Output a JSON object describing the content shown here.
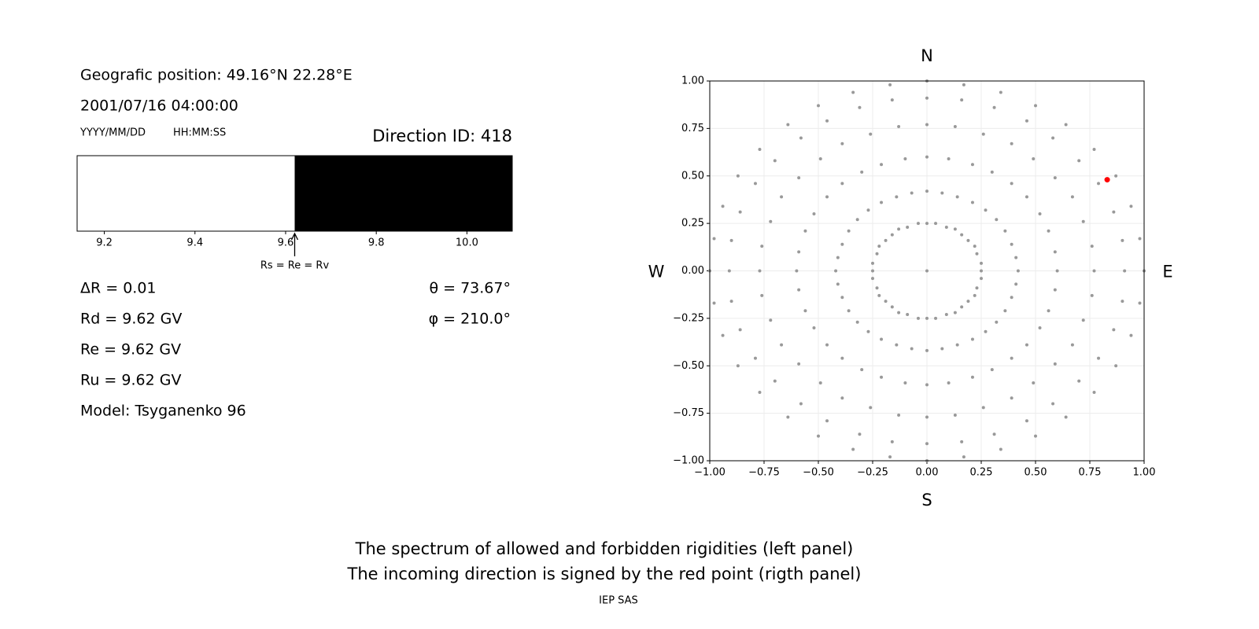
{
  "header": {
    "position": "Geografic position: 49.16°N 22.28°E",
    "datetime": "2001/07/16 04:00:00",
    "date_format": "YYYY/MM/DD",
    "time_format": "HH:MM:SS",
    "direction": "Direction ID: 418"
  },
  "params_left": [
    "ΔR = 0.01",
    "Rd = 9.62 GV",
    "Re = 9.62 GV",
    "Ru = 9.62 GV",
    "Model: Tsyganenko 96"
  ],
  "params_right": [
    "θ = 73.67°",
    "φ = 210.0°"
  ],
  "chart_data": [
    {
      "type": "spectrum",
      "xlim": [
        9.14,
        10.1
      ],
      "xticks": [
        9.2,
        9.4,
        9.6,
        9.8,
        {
          "value": 10,
          "label": "10.0"
        }
      ],
      "cutoff": 9.62,
      "cutoff_label": "Rs = Re = Rv",
      "allowed_color": "#ffffff",
      "forbidden_color": "#000000"
    },
    {
      "type": "scatter",
      "xlim": [
        -1,
        1
      ],
      "ylim": [
        -1,
        1
      ],
      "xticks": [
        {
          "value": -1,
          "label": "−1.00"
        },
        {
          "value": -0.75,
          "label": "−0.75"
        },
        {
          "value": -0.5,
          "label": "−0.50"
        },
        {
          "value": -0.25,
          "label": "−0.25"
        },
        {
          "value": 0,
          "label": "0.00"
        },
        {
          "value": 0.25,
          "label": "0.25"
        },
        {
          "value": 0.5,
          "label": "0.50"
        },
        {
          "value": 0.75,
          "label": "0.75"
        },
        {
          "value": 1,
          "label": "1.00"
        }
      ],
      "yticks": [
        {
          "value": -1,
          "label": "−1.00"
        },
        {
          "value": -0.75,
          "label": "−0.75"
        },
        {
          "value": -0.5,
          "label": "−0.50"
        },
        {
          "value": -0.25,
          "label": "−0.25"
        },
        {
          "value": 0,
          "label": "0.00"
        },
        {
          "value": 0.25,
          "label": "0.25"
        },
        {
          "value": 0.5,
          "label": "0.50"
        },
        {
          "value": 0.75,
          "label": "0.75"
        },
        {
          "value": 1,
          "label": "1.00"
        }
      ],
      "grid": true,
      "compass": {
        "north": "N",
        "south": "S",
        "west": "W",
        "east": "E"
      },
      "points": {
        "color": "#999999",
        "x": [
          0.25,
          0.25,
          0.23,
          0.22,
          0.19,
          0.16,
          0.13,
          0.09,
          0.04,
          0,
          -0.04,
          -0.09,
          -0.13,
          -0.16,
          -0.19,
          -0.22,
          -0.23,
          -0.25,
          -0.25,
          -0.25,
          -0.23,
          -0.22,
          -0.19,
          -0.16,
          -0.13,
          -0.09,
          -0.04,
          0,
          0.04,
          0.09,
          0.13,
          0.16,
          0.19,
          0.22,
          0.23,
          0.25,
          0.42,
          0.41,
          0.39,
          0.36,
          0.32,
          0.27,
          0.21,
          0.14,
          0.07,
          0,
          -0.07,
          -0.14,
          -0.21,
          -0.27,
          -0.32,
          -0.36,
          -0.39,
          -0.41,
          -0.42,
          -0.41,
          -0.39,
          -0.36,
          -0.32,
          -0.27,
          -0.21,
          -0.14,
          -0.07,
          0,
          0.07,
          0.14,
          0.21,
          0.27,
          0.32,
          0.36,
          0.39,
          0.41,
          0.6,
          0.59,
          0.56,
          0.52,
          0.46,
          0.39,
          0.3,
          0.21,
          0.1,
          0,
          -0.1,
          -0.21,
          -0.3,
          -0.39,
          -0.46,
          -0.52,
          -0.56,
          -0.59,
          -0.6,
          -0.59,
          -0.56,
          -0.52,
          -0.46,
          -0.39,
          -0.3,
          -0.21,
          -0.1,
          0,
          0.1,
          0.21,
          0.3,
          0.39,
          0.46,
          0.52,
          0.56,
          0.59,
          0.77,
          0.76,
          0.72,
          0.67,
          0.59,
          0.49,
          0.39,
          0.26,
          0.13,
          0,
          -0.13,
          -0.26,
          -0.39,
          -0.49,
          -0.59,
          -0.67,
          -0.72,
          -0.76,
          -0.77,
          -0.76,
          -0.72,
          -0.67,
          -0.59,
          -0.49,
          -0.39,
          -0.26,
          -0.13,
          0,
          0.13,
          0.26,
          0.39,
          0.49,
          0.59,
          0.67,
          0.72,
          0.76,
          0.91,
          0.9,
          0.86,
          0.79,
          0.7,
          0.58,
          0.46,
          0.31,
          0.16,
          0,
          -0.16,
          -0.31,
          -0.46,
          -0.58,
          -0.7,
          -0.79,
          -0.86,
          -0.9,
          -0.91,
          -0.9,
          -0.86,
          -0.79,
          -0.7,
          -0.58,
          -0.46,
          -0.31,
          -0.16,
          0,
          0.16,
          0.31,
          0.46,
          0.58,
          0.7,
          0.79,
          0.86,
          0.9,
          1,
          0.98,
          0.94,
          0.87,
          0.77,
          0.64,
          0.5,
          0.34,
          0.17,
          0,
          -0.17,
          -0.34,
          -0.5,
          -0.64,
          -0.77,
          -0.87,
          -0.94,
          -0.98,
          -1,
          -0.98,
          -0.94,
          -0.87,
          -0.77,
          -0.64,
          -0.5,
          -0.34,
          -0.17,
          0,
          0.17,
          0.34,
          0.5,
          0.64,
          0.77,
          0.87,
          0.94,
          0.98,
          0
        ],
        "y": [
          0,
          0.04,
          0.09,
          0.13,
          0.16,
          0.19,
          0.22,
          0.23,
          0.25,
          0.25,
          0.25,
          0.23,
          0.22,
          0.19,
          0.16,
          0.13,
          0.09,
          0.04,
          0,
          -0.04,
          -0.09,
          -0.13,
          -0.16,
          -0.19,
          -0.22,
          -0.23,
          -0.25,
          -0.25,
          -0.25,
          -0.23,
          -0.22,
          -0.19,
          -0.16,
          -0.13,
          -0.09,
          -0.04,
          0,
          0.07,
          0.14,
          0.21,
          0.27,
          0.32,
          0.36,
          0.39,
          0.41,
          0.42,
          0.41,
          0.39,
          0.36,
          0.32,
          0.27,
          0.21,
          0.14,
          0.07,
          0,
          -0.07,
          -0.14,
          -0.21,
          -0.27,
          -0.32,
          -0.36,
          -0.39,
          -0.41,
          -0.42,
          -0.41,
          -0.39,
          -0.36,
          -0.32,
          -0.27,
          -0.21,
          -0.14,
          -0.07,
          0,
          0.1,
          0.21,
          0.3,
          0.39,
          0.46,
          0.52,
          0.56,
          0.59,
          0.6,
          0.59,
          0.56,
          0.52,
          0.46,
          0.39,
          0.3,
          0.21,
          0.1,
          0,
          -0.1,
          -0.21,
          -0.3,
          -0.39,
          -0.46,
          -0.52,
          -0.56,
          -0.59,
          -0.6,
          -0.59,
          -0.56,
          -0.52,
          -0.46,
          -0.39,
          -0.3,
          -0.21,
          -0.1,
          0,
          0.13,
          0.26,
          0.39,
          0.49,
          0.59,
          0.67,
          0.72,
          0.76,
          0.77,
          0.76,
          0.72,
          0.67,
          0.59,
          0.49,
          0.39,
          0.26,
          0.13,
          0,
          -0.13,
          -0.26,
          -0.39,
          -0.49,
          -0.59,
          -0.67,
          -0.72,
          -0.76,
          -0.77,
          -0.76,
          -0.72,
          -0.67,
          -0.59,
          -0.49,
          -0.39,
          -0.26,
          -0.13,
          0,
          0.16,
          0.31,
          0.46,
          0.58,
          0.7,
          0.79,
          0.86,
          0.9,
          0.91,
          0.9,
          0.86,
          0.79,
          0.7,
          0.58,
          0.46,
          0.31,
          0.16,
          0,
          -0.16,
          -0.31,
          -0.46,
          -0.58,
          -0.7,
          -0.79,
          -0.86,
          -0.9,
          -0.91,
          -0.9,
          -0.86,
          -0.79,
          -0.7,
          -0.58,
          -0.46,
          -0.31,
          -0.16,
          0,
          0.17,
          0.34,
          0.5,
          0.64,
          0.77,
          0.87,
          0.94,
          0.98,
          1,
          0.98,
          0.94,
          0.87,
          0.77,
          0.64,
          0.5,
          0.34,
          0.17,
          0,
          -0.17,
          -0.34,
          -0.5,
          -0.64,
          -0.77,
          -0.87,
          -0.94,
          -0.98,
          -1,
          -0.98,
          -0.94,
          -0.87,
          -0.77,
          -0.64,
          -0.5,
          -0.34,
          -0.17,
          0
        ]
      },
      "highlight": {
        "color": "#ff0000",
        "x": [
          0.83
        ],
        "y": [
          0.48
        ]
      }
    }
  ],
  "caption": [
    "The spectrum of allowed and forbidden rigidities (left panel)",
    "The incoming direction is signed by the red point (rigth panel)"
  ],
  "footer": "IEP SAS"
}
